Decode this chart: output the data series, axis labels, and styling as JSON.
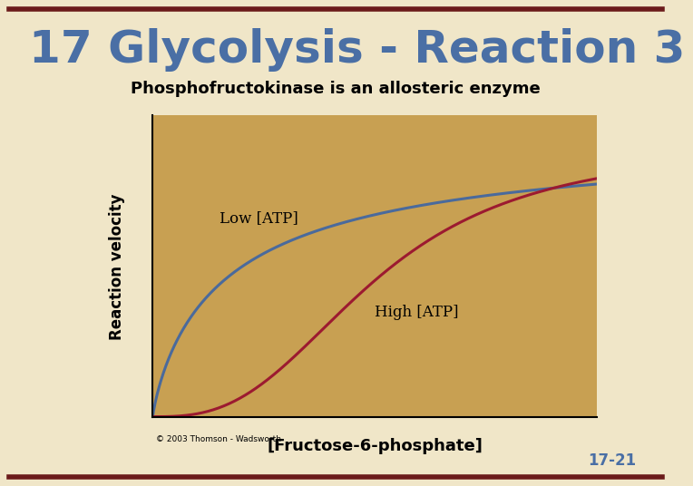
{
  "title": "17 Glycolysis - Reaction 3",
  "subtitle": "Phosphofructokinase is an allosteric enzyme",
  "title_color": "#4a6fa5",
  "subtitle_color": "#000000",
  "bg_color": "#f0e6c8",
  "plot_bg_color": "#c8a052",
  "border_top_color": "#6b1a1a",
  "border_bottom_color": "#6b1a1a",
  "ylabel": "Reaction velocity",
  "xlabel": "[Fructose-6-phosphate]",
  "copyright": "© 2003 Thomson - Wadsworth",
  "low_atp_label": "Low [ATP]",
  "high_atp_label": "High [ATP]",
  "low_atp_color": "#4a6a9c",
  "high_atp_color": "#9c1a30",
  "page_number": "17-21",
  "page_number_color": "#4a6fa5",
  "title_fontsize": 36,
  "subtitle_fontsize": 13,
  "ylabel_fontsize": 12,
  "xlabel_fontsize": 13,
  "label_fontsize": 12,
  "copyright_fontsize": 6.5,
  "page_fontsize": 12
}
